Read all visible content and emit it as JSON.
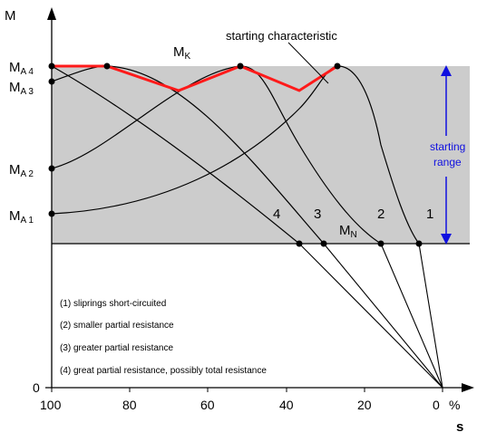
{
  "axes": {
    "y_label": "M",
    "x_label": "s",
    "x_ticks": [
      "100",
      "80",
      "60",
      "40",
      "20",
      "0"
    ],
    "x_unit": "%",
    "y_zero": "0"
  },
  "torque_labels": {
    "ma4": {
      "main": "M",
      "sub": "A 4"
    },
    "ma3": {
      "main": "M",
      "sub": "A 3"
    },
    "ma2": {
      "main": "M",
      "sub": "A 2"
    },
    "ma1": {
      "main": "M",
      "sub": "A 1"
    },
    "mk": {
      "main": "M",
      "sub": "K"
    },
    "mn": {
      "main": "M",
      "sub": "N"
    }
  },
  "starting_characteristic": "starting characteristic",
  "starting_range": {
    "line1": "starting",
    "line2": "range"
  },
  "curve_numbers": [
    "1",
    "2",
    "3",
    "4"
  ],
  "legend": [
    "(1) sliprings short-circuited",
    "(2) smaller partial resistance",
    "(3) greater partial resistance",
    "(4) great partial resistance, possibly total resistance"
  ],
  "colors": {
    "shaded_band": "#cccccc",
    "starting_characteristic": "#ff1a1a",
    "starting_range": "#1010e0"
  }
}
